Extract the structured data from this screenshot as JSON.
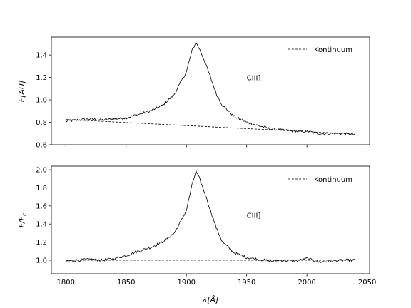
{
  "chart_data": [
    {
      "type": "line",
      "ylabel": "F[AU]",
      "xlim": [
        1788,
        2052
      ],
      "ylim": [
        0.6,
        1.56
      ],
      "yticks": [
        "0.6",
        "0.8",
        "1.0",
        "1.2",
        "1.4"
      ],
      "ytick_values": [
        0.6,
        0.8,
        1.0,
        1.2,
        1.4
      ],
      "annotation": "CIII]",
      "annotation_at": [
        1950,
        1.2
      ],
      "legend": {
        "label": "Kontinuum",
        "placement": "top-right"
      },
      "series": [
        {
          "style": "solid",
          "anchors": [
            [
              1800,
              0.81
            ],
            [
              1810,
              0.82
            ],
            [
              1820,
              0.83
            ],
            [
              1830,
              0.82
            ],
            [
              1840,
              0.83
            ],
            [
              1850,
              0.84
            ],
            [
              1860,
              0.87
            ],
            [
              1870,
              0.9
            ],
            [
              1880,
              0.95
            ],
            [
              1890,
              1.05
            ],
            [
              1895,
              1.15
            ],
            [
              1900,
              1.25
            ],
            [
              1905,
              1.45
            ],
            [
              1908,
              1.51
            ],
            [
              1911,
              1.45
            ],
            [
              1915,
              1.35
            ],
            [
              1920,
              1.2
            ],
            [
              1925,
              1.05
            ],
            [
              1930,
              0.95
            ],
            [
              1940,
              0.85
            ],
            [
              1950,
              0.8
            ],
            [
              1960,
              0.77
            ],
            [
              1970,
              0.74
            ],
            [
              1980,
              0.73
            ],
            [
              1990,
              0.72
            ],
            [
              2000,
              0.72
            ],
            [
              2010,
              0.7
            ],
            [
              2020,
              0.7
            ],
            [
              2030,
              0.7
            ],
            [
              2040,
              0.69
            ]
          ]
        },
        {
          "name": "Kontinuum",
          "style": "dashed",
          "points": [
            [
              1800,
              0.825
            ],
            [
              2040,
              0.695
            ]
          ]
        }
      ]
    },
    {
      "type": "line",
      "ylabel": "F/F_c",
      "xlabel": "λ[Å]",
      "xlim": [
        1788,
        2052
      ],
      "ylim": [
        0.85,
        2.04
      ],
      "yticks": [
        "1.0",
        "1.2",
        "1.4",
        "1.6",
        "1.8",
        "2.0"
      ],
      "ytick_values": [
        1.0,
        1.2,
        1.4,
        1.6,
        1.8,
        2.0
      ],
      "xticks": [
        "1800",
        "1850",
        "1900",
        "1950",
        "2000",
        "2050"
      ],
      "xtick_values": [
        1800,
        1850,
        1900,
        1950,
        2000,
        2050
      ],
      "annotation": "CIII]",
      "annotation_at": [
        1950,
        1.5
      ],
      "legend": {
        "label": "Kontinuum",
        "placement": "top-right"
      },
      "series": [
        {
          "style": "solid",
          "anchors": [
            [
              1800,
              0.99
            ],
            [
              1810,
              1.0
            ],
            [
              1820,
              1.01
            ],
            [
              1830,
              1.0
            ],
            [
              1840,
              1.02
            ],
            [
              1850,
              1.05
            ],
            [
              1860,
              1.1
            ],
            [
              1870,
              1.14
            ],
            [
              1880,
              1.2
            ],
            [
              1890,
              1.3
            ],
            [
              1895,
              1.42
            ],
            [
              1900,
              1.55
            ],
            [
              1905,
              1.85
            ],
            [
              1908,
              1.98
            ],
            [
              1911,
              1.9
            ],
            [
              1915,
              1.75
            ],
            [
              1920,
              1.55
            ],
            [
              1925,
              1.35
            ],
            [
              1930,
              1.2
            ],
            [
              1940,
              1.08
            ],
            [
              1950,
              1.03
            ],
            [
              1960,
              1.01
            ],
            [
              1970,
              0.99
            ],
            [
              1980,
              1.0
            ],
            [
              1990,
              0.99
            ],
            [
              2000,
              1.02
            ],
            [
              2010,
              0.98
            ],
            [
              2020,
              0.99
            ],
            [
              2030,
              1.0
            ],
            [
              2040,
              1.0
            ]
          ]
        },
        {
          "name": "Kontinuum",
          "style": "dashed",
          "points": [
            [
              1800,
              1.0
            ],
            [
              2040,
              1.0
            ]
          ]
        }
      ]
    }
  ]
}
